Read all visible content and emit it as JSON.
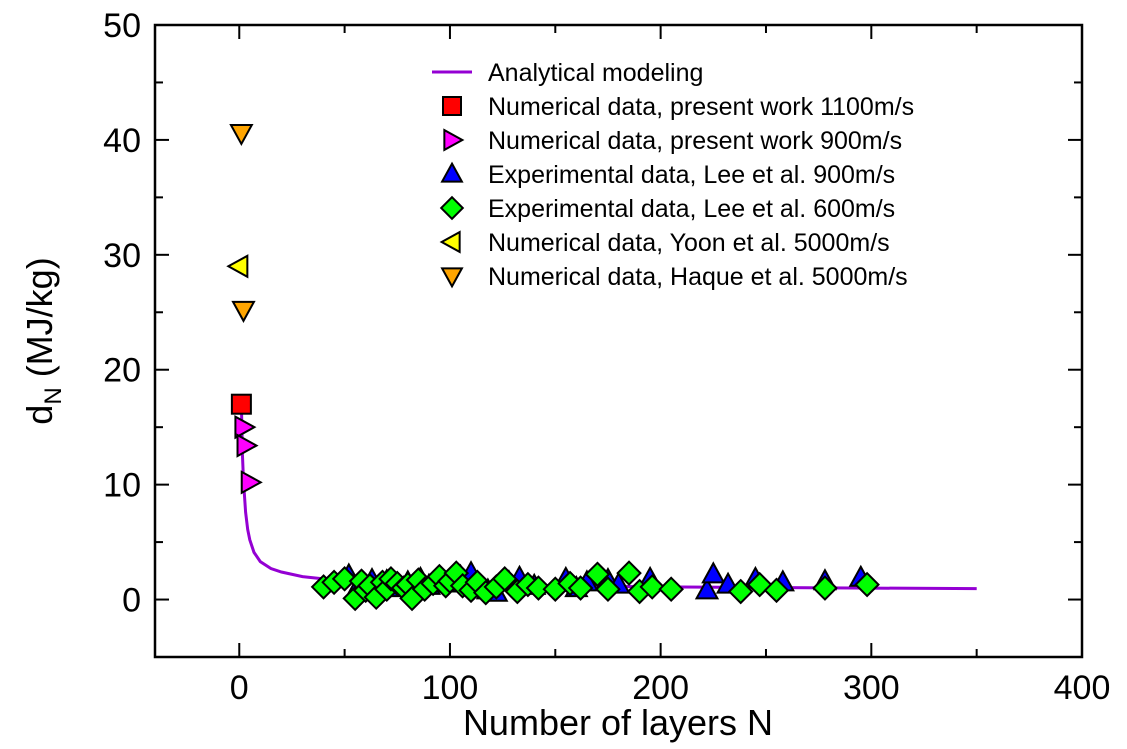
{
  "chart_data": {
    "type": "scatter",
    "title": "",
    "xlabel": "Number of layers N",
    "ylabel": {
      "base": "d",
      "subscript": "N",
      "rest": " (MJ/kg)"
    },
    "xlim": [
      -40,
      400
    ],
    "ylim": [
      -5,
      50
    ],
    "xticks": [
      0,
      100,
      200,
      300,
      400
    ],
    "yticks": [
      0,
      10,
      20,
      30,
      40,
      50
    ],
    "legend_position": "top-right",
    "series": [
      {
        "name": "Analytical modeling",
        "kind": "line",
        "color": "#9400d3",
        "x": [
          1,
          1.5,
          2,
          3,
          4,
          5,
          7,
          10,
          15,
          20,
          30,
          40,
          50,
          60,
          80,
          100,
          150,
          200,
          250,
          300,
          350
        ],
        "y": [
          17,
          12.7,
          10.3,
          7.6,
          6.1,
          5.2,
          4.1,
          3.3,
          2.7,
          2.4,
          2.0,
          1.8,
          1.7,
          1.6,
          1.45,
          1.35,
          1.2,
          1.1,
          1.05,
          1.0,
          0.95
        ]
      },
      {
        "name": "Numerical data, present work 1100m/s",
        "kind": "marker",
        "marker": "square",
        "color": "#ff0000",
        "x": [
          1
        ],
        "y": [
          17
        ]
      },
      {
        "name": "Numerical data, present work 900m/s",
        "kind": "marker",
        "marker": "triangle-right",
        "color": "#ff00ff",
        "x": [
          2,
          3,
          5
        ],
        "y": [
          15,
          13.4,
          10.2
        ]
      },
      {
        "name": "Experimental data, Lee et al. 900m/s",
        "kind": "marker",
        "marker": "triangle-up",
        "color": "#0000ff",
        "x": [
          52,
          57,
          63,
          70,
          75,
          80,
          86,
          90,
          95,
          100,
          105,
          110,
          115,
          118,
          122,
          128,
          133,
          140,
          155,
          160,
          165,
          175,
          180,
          195,
          222,
          225,
          232,
          245,
          258,
          278,
          295
        ],
        "y": [
          2.1,
          1.3,
          1.7,
          1.6,
          1.0,
          1.5,
          1.8,
          1.2,
          1.9,
          1.4,
          2.0,
          2.3,
          1.1,
          0.8,
          0.6,
          1.5,
          1.9,
          1.2,
          1.8,
          1.0,
          1.5,
          1.7,
          1.3,
          1.8,
          0.8,
          2.2,
          1.3,
          1.8,
          1.5,
          1.6,
          1.9
        ]
      },
      {
        "name": "Experimental data, Lee et al. 600m/s",
        "kind": "marker",
        "marker": "diamond",
        "color": "#00ff00",
        "x": [
          40,
          45,
          50,
          55,
          58,
          60,
          62,
          65,
          68,
          70,
          72,
          75,
          78,
          80,
          82,
          85,
          88,
          92,
          95,
          98,
          100,
          103,
          106,
          110,
          113,
          117,
          122,
          126,
          132,
          137,
          142,
          150,
          157,
          162,
          170,
          175,
          185,
          190,
          196,
          205,
          238,
          247,
          255,
          278,
          298
        ],
        "y": [
          1.1,
          1.5,
          1.8,
          0.1,
          1.6,
          0.8,
          1.2,
          0.2,
          1.5,
          0.9,
          1.8,
          1.4,
          1.0,
          1.3,
          0.1,
          1.7,
          0.9,
          1.4,
          2.0,
          1.2,
          1.6,
          2.3,
          1.2,
          0.8,
          1.5,
          0.6,
          1.1,
          1.8,
          0.7,
          1.3,
          1.0,
          0.9,
          1.4,
          1.0,
          2.2,
          0.9,
          2.3,
          0.7,
          1.1,
          0.9,
          0.7,
          1.3,
          0.8,
          1.0,
          1.3
        ]
      },
      {
        "name": "Numerical data, Yoon et al. 5000m/s",
        "kind": "marker",
        "marker": "triangle-left",
        "color": "#ffff00",
        "x": [
          0
        ],
        "y": [
          29
        ]
      },
      {
        "name": "Numerical data, Haque et al. 5000m/s",
        "kind": "marker",
        "marker": "triangle-down",
        "color": "#ffa500",
        "x": [
          1,
          2
        ],
        "y": [
          40.6,
          25.2
        ]
      }
    ]
  }
}
